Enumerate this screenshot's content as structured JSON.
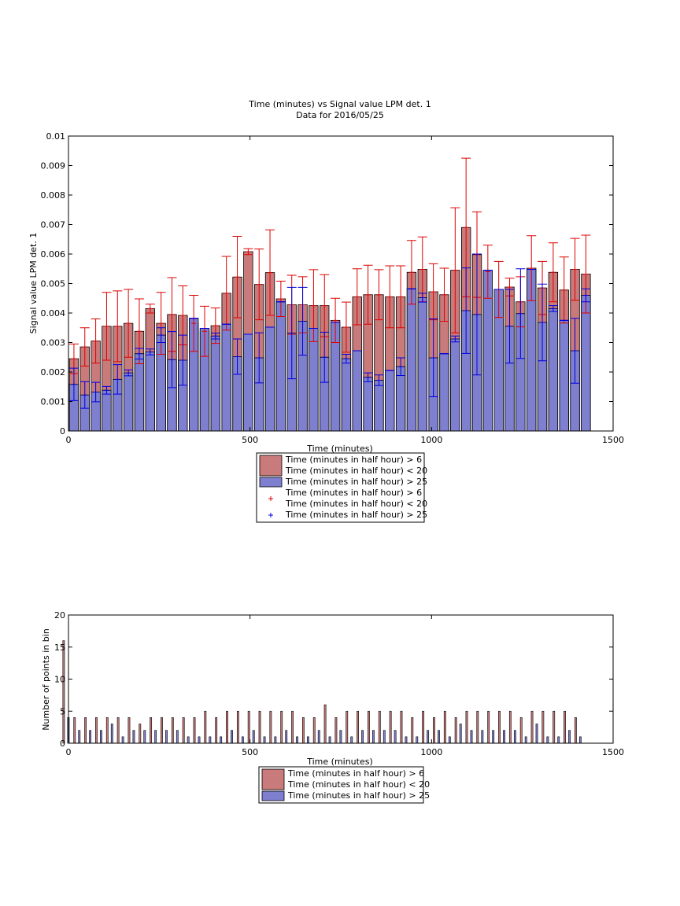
{
  "chart_data": [
    {
      "type": "bar",
      "title": "Time (minutes) vs Signal value LPM det. 1",
      "subtitle": "Data for 2016/05/25",
      "xlabel": "Time (minutes)",
      "ylabel": "Signal value LPM det. 1",
      "xlim": [
        0,
        1500
      ],
      "ylim": [
        0,
        0.01
      ],
      "xticks": [
        "0",
        "500",
        "1000",
        "1500"
      ],
      "yticks": [
        "0",
        "0.001",
        "0.002",
        "0.003",
        "0.004",
        "0.005",
        "0.006",
        "0.007",
        "0.008",
        "0.009",
        "0.01"
      ],
      "legend_position": "below",
      "x": [
        15,
        45,
        75,
        105,
        135,
        165,
        195,
        225,
        255,
        285,
        315,
        345,
        375,
        405,
        435,
        465,
        495,
        525,
        555,
        585,
        615,
        645,
        675,
        705,
        735,
        765,
        795,
        825,
        855,
        885,
        915,
        945,
        975,
        1005,
        1035,
        1065,
        1095,
        1125,
        1155,
        1185,
        1215,
        1245,
        1275,
        1305,
        1335,
        1365,
        1395,
        1425
      ],
      "series": [
        {
          "name": "Time (minutes in half hour) > 6\nTime (minutes in half hour) < 20",
          "color": "#c97a7a",
          "errcolor": "#dd0000",
          "values": [
            0.00245,
            0.00285,
            0.00305,
            0.00355,
            0.00355,
            0.00365,
            0.00338,
            0.00415,
            0.00365,
            0.00395,
            0.00392,
            0.00365,
            0.00338,
            0.00357,
            0.00467,
            0.00522,
            0.00608,
            0.00497,
            0.00537,
            0.00448,
            0.00428,
            0.00428,
            0.00425,
            0.00425,
            0.00375,
            0.00352,
            0.00455,
            0.00462,
            0.00462,
            0.00455,
            0.00455,
            0.00538,
            0.00548,
            0.00472,
            0.00462,
            0.00545,
            0.0069,
            0.00598,
            0.0054,
            0.0048,
            0.00488,
            0.00438,
            0.00552,
            0.00485,
            0.00538,
            0.00478,
            0.00548,
            0.00532
          ],
          "err": [
            0.0005,
            0.00065,
            0.00075,
            0.00115,
            0.0012,
            0.00115,
            0.0011,
            0.00015,
            0.00105,
            0.00125,
            0.001,
            0.00095,
            0.00085,
            0.0006,
            0.00125,
            0.00138,
            0.0001,
            0.0012,
            0.00145,
            0.0006,
            0.001,
            0.00095,
            0.00122,
            0.00105,
            0.00075,
            0.00085,
            0.00095,
            0.001,
            0.00085,
            0.00105,
            0.00105,
            0.00108,
            0.0011,
            0.00095,
            0.0009,
            0.00212,
            0.00235,
            0.00145,
            0.0009,
            0.00095,
            0.0003,
            0.00085,
            0.0011,
            0.0009,
            0.001,
            0.00112,
            0.00105,
            0.00132
          ]
        },
        {
          "name": "Time (minutes in half hour) > 25",
          "color": "#7f7fd0",
          "errcolor": "#0000dd",
          "values": [
            0.00158,
            0.00122,
            0.00132,
            0.00138,
            0.00175,
            0.00197,
            0.00262,
            0.00268,
            0.00325,
            0.00242,
            0.0024,
            0.00382,
            0.00348,
            0.00322,
            0.00362,
            0.00252,
            0.00328,
            0.00248,
            0.00352,
            0.00438,
            0.00332,
            0.00372,
            0.00348,
            0.0025,
            0.00368,
            0.00245,
            0.00272,
            0.00182,
            0.00172,
            0.00205,
            0.00218,
            0.00482,
            0.00452,
            0.00248,
            0.00262,
            0.00312,
            0.00408,
            0.00395,
            0.00545,
            0.0048,
            0.00355,
            0.00398,
            0.00548,
            0.00368,
            0.00415,
            0.00375,
            0.00272,
            0.0046
          ],
          "err": [
            0.00055,
            0.00045,
            0.00033,
            0.00013,
            0.0005,
            0.0001,
            0.00018,
            0.0001,
            0.00025,
            0.00095,
            0.00085,
            0.0,
            0.0,
            0.0001,
            0.0,
            0.0006,
            0.0,
            0.00085,
            0.0,
            0.0,
            0.00155,
            0.00115,
            0.0,
            0.00085,
            0.0,
            0.00015,
            0.0,
            0.00015,
            0.00018,
            0.0,
            0.0003,
            0.0,
            0.00015,
            0.00132,
            0.0,
            0.0001,
            0.00145,
            0.00205,
            0.0,
            0.0,
            0.00125,
            0.00152,
            0.0,
            0.0013,
            0.0001,
            0.0,
            0.0011,
            0.00022
          ]
        }
      ]
    },
    {
      "type": "bar",
      "title": "",
      "xlabel": "Time (minutes)",
      "ylabel": "Number of points in bin",
      "xlim": [
        0,
        1500
      ],
      "ylim": [
        0,
        20
      ],
      "xticks": [
        "0",
        "500",
        "1000",
        "1500"
      ],
      "yticks": [
        "0",
        "5",
        "10",
        "15",
        "20"
      ],
      "legend_position": "below",
      "x": [
        15,
        45,
        75,
        105,
        135,
        165,
        195,
        225,
        255,
        285,
        315,
        345,
        375,
        405,
        435,
        465,
        495,
        525,
        555,
        585,
        615,
        645,
        675,
        705,
        735,
        765,
        795,
        825,
        855,
        885,
        915,
        945,
        975,
        1005,
        1035,
        1065,
        1095,
        1125,
        1155,
        1185,
        1215,
        1245,
        1275,
        1305,
        1335,
        1365,
        1395,
        1425
      ],
      "series": [
        {
          "name": "Time (minutes in half hour) > 6\nTime (minutes in half hour) < 20",
          "color": "#c97a7a",
          "values": [
            16,
            4,
            4,
            4,
            4,
            4,
            4,
            3,
            4,
            4,
            4,
            4,
            4,
            5,
            4,
            5,
            5,
            5,
            5,
            5,
            5,
            5,
            4,
            4,
            6,
            4,
            5,
            5,
            5,
            5,
            5,
            5,
            4,
            5,
            4,
            5,
            4,
            5,
            5,
            5,
            5,
            5,
            4,
            5,
            5,
            5,
            5,
            4
          ]
        },
        {
          "name": "Time (minutes in half hour) > 25",
          "color": "#7f7fd0",
          "values": [
            4,
            2,
            2,
            2,
            3,
            1,
            2,
            2,
            2,
            2,
            2,
            1,
            1,
            1,
            1,
            2,
            1,
            2,
            1,
            1,
            2,
            1,
            1,
            2,
            1,
            2,
            1,
            2,
            2,
            2,
            2,
            1,
            1,
            2,
            2,
            1,
            3,
            2,
            2,
            2,
            2,
            2,
            1,
            3,
            1,
            1,
            2,
            1
          ]
        }
      ]
    }
  ],
  "legend_top": {
    "entries": [
      {
        "label": "Time (minutes in half hour) > 6\nTime (minutes in half hour) < 20",
        "kind": "patch",
        "color": "#c97a7a"
      },
      {
        "label": "Time (minutes in half hour) > 25",
        "kind": "patch",
        "color": "#7f7fd0"
      },
      {
        "label": "Time (minutes in half hour) > 6\nTime (minutes in half hour) < 20",
        "kind": "marker",
        "marker": "+",
        "color": "#dd0000"
      },
      {
        "label": "Time (minutes in half hour) > 25",
        "kind": "marker",
        "marker": "+",
        "color": "#0000dd"
      }
    ]
  },
  "legend_bottom": {
    "entries": [
      {
        "label": "Time (minutes in half hour) > 6\nTime (minutes in half hour) < 20",
        "kind": "patch",
        "color": "#c97a7a"
      },
      {
        "label": "Time (minutes in half hour) > 25",
        "kind": "patch",
        "color": "#7f7fd0"
      }
    ]
  }
}
